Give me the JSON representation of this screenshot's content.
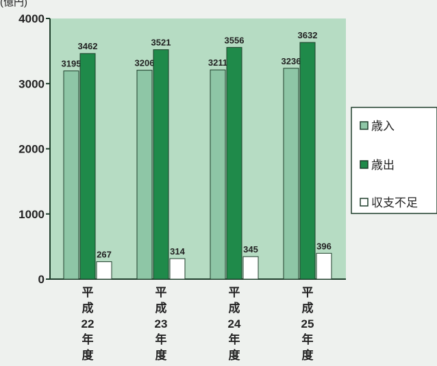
{
  "chart_data": {
    "type": "bar",
    "unit_label": "(億円)",
    "categories": [
      "平成22年度",
      "平成23年度",
      "平成24年度",
      "平成25年度"
    ],
    "category_chars": [
      [
        "平",
        "成",
        "22",
        "年",
        "度"
      ],
      [
        "平",
        "成",
        "23",
        "年",
        "度"
      ],
      [
        "平",
        "成",
        "24",
        "年",
        "度"
      ],
      [
        "平",
        "成",
        "25",
        "年",
        "度"
      ]
    ],
    "series": [
      {
        "name": "歳入",
        "values": [
          3195,
          3206,
          3211,
          3236
        ],
        "color": "#8ec6a6"
      },
      {
        "name": "歳出",
        "values": [
          3462,
          3521,
          3556,
          3632
        ],
        "color": "#1f8a4a"
      },
      {
        "name": "収支不足",
        "values": [
          267,
          314,
          345,
          396
        ],
        "color": "#ffffff"
      }
    ],
    "legend_markers": [
      "□",
      "■",
      "□"
    ],
    "ylim": [
      0,
      4000
    ],
    "yticks": [
      0,
      1000,
      2000,
      3000,
      4000
    ],
    "grid": false,
    "legend_position": "right",
    "colors": {
      "plot_background": "#b6dcc3",
      "axis": "#1d3d2a",
      "page_background": "#eef1ee"
    }
  }
}
